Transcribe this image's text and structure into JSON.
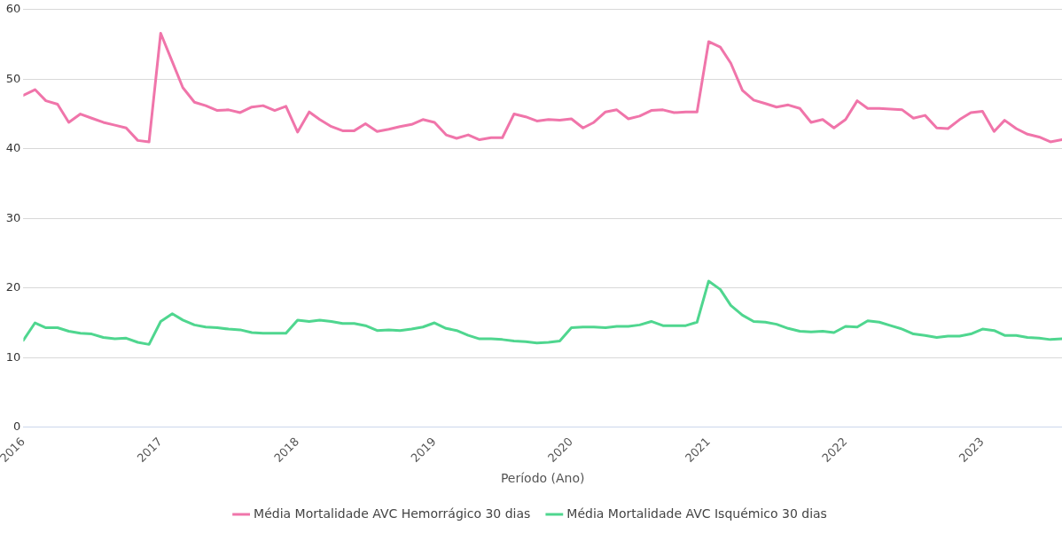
{
  "chart_data": {
    "type": "line",
    "xlabel": "Período (Ano)",
    "x": [
      "2016-01",
      "2016-02",
      "2016-03",
      "2016-04",
      "2016-05",
      "2016-06",
      "2016-07",
      "2016-08",
      "2016-09",
      "2016-10",
      "2016-11",
      "2016-12",
      "2017-01",
      "2017-02",
      "2017-03",
      "2017-04",
      "2017-05",
      "2017-06",
      "2017-07",
      "2017-08",
      "2017-09",
      "2017-10",
      "2017-11",
      "2017-12",
      "2018-01",
      "2018-02",
      "2018-03",
      "2018-04",
      "2018-05",
      "2018-06",
      "2018-07",
      "2018-08",
      "2018-09",
      "2018-10",
      "2018-11",
      "2018-12",
      "2019-01",
      "2019-02",
      "2019-03",
      "2019-04",
      "2019-05",
      "2019-06",
      "2019-07",
      "2019-08",
      "2019-09",
      "2019-10",
      "2019-11",
      "2019-12",
      "2020-01",
      "2020-02",
      "2020-03",
      "2020-04",
      "2020-05",
      "2020-06",
      "2020-07",
      "2020-08",
      "2020-09",
      "2020-10",
      "2020-11",
      "2020-12",
      "2021-01",
      "2021-02",
      "2021-03",
      "2021-04",
      "2021-05",
      "2021-06",
      "2021-07",
      "2021-08",
      "2021-09",
      "2021-10",
      "2021-11",
      "2021-12",
      "2022-01",
      "2022-02",
      "2022-03",
      "2022-04",
      "2022-05",
      "2022-06",
      "2022-07",
      "2022-08",
      "2022-09",
      "2022-10",
      "2022-11",
      "2022-12",
      "2023-01",
      "2023-02",
      "2023-03",
      "2023-04",
      "2023-05",
      "2023-06",
      "2023-07",
      "2023-08"
    ],
    "series": [
      {
        "name": "Média Mortalidade AVC Hemorrágico 30 dias",
        "color": "#f075aa",
        "values": [
          47.7,
          48.5,
          46.9,
          46.4,
          43.8,
          45.0,
          44.4,
          43.8,
          43.4,
          43.0,
          41.2,
          41.0,
          56.6,
          52.5,
          48.8,
          46.7,
          46.2,
          45.5,
          45.6,
          45.2,
          46.0,
          46.2,
          45.5,
          46.1,
          42.4,
          45.3,
          44.2,
          43.2,
          42.6,
          42.6,
          43.6,
          42.5,
          42.8,
          43.2,
          43.5,
          44.2,
          43.8,
          42.0,
          41.5,
          42.0,
          41.3,
          41.6,
          41.6,
          45.0,
          44.6,
          44.0,
          44.2,
          44.1,
          44.3,
          43.0,
          43.8,
          45.3,
          45.6,
          44.3,
          44.7,
          45.5,
          45.6,
          45.2,
          45.3,
          45.3,
          55.4,
          54.6,
          52.3,
          48.4,
          47.0,
          46.5,
          46.0,
          46.3,
          45.8,
          43.8,
          44.2,
          43.0,
          44.2,
          46.9,
          45.8,
          45.8,
          45.7,
          45.6,
          44.4,
          44.8,
          43.0,
          42.9,
          44.2,
          45.2,
          45.4,
          42.5,
          44.1,
          42.9,
          42.1,
          41.7,
          41.0,
          41.3
        ]
      },
      {
        "name": "Média Mortalidade AVC Isquémico 30 dias",
        "color": "#4fd68f",
        "values": [
          12.5,
          15.0,
          14.3,
          14.3,
          13.8,
          13.5,
          13.4,
          12.9,
          12.7,
          12.8,
          12.2,
          11.9,
          15.2,
          16.3,
          15.4,
          14.7,
          14.4,
          14.3,
          14.1,
          14.0,
          13.6,
          13.5,
          13.5,
          13.5,
          15.4,
          15.2,
          15.4,
          15.2,
          14.9,
          14.9,
          14.6,
          13.9,
          14.0,
          13.9,
          14.1,
          14.4,
          15.0,
          14.2,
          13.9,
          13.2,
          12.7,
          12.7,
          12.6,
          12.4,
          12.3,
          12.1,
          12.2,
          12.4,
          14.3,
          14.4,
          14.4,
          14.3,
          14.5,
          14.5,
          14.7,
          15.2,
          14.6,
          14.6,
          14.6,
          15.1,
          21.0,
          19.8,
          17.5,
          16.1,
          15.2,
          15.1,
          14.8,
          14.2,
          13.8,
          13.7,
          13.8,
          13.6,
          14.5,
          14.4,
          15.3,
          15.1,
          14.6,
          14.1,
          13.4,
          13.2,
          12.9,
          13.1,
          13.1,
          13.4,
          14.1,
          13.9,
          13.2,
          13.2,
          12.9,
          12.8,
          12.6,
          12.7
        ]
      }
    ],
    "xlim": [
      "2016-01",
      "2023-08"
    ],
    "xticks": [
      "2016",
      "2017",
      "2018",
      "2019",
      "2020",
      "2021",
      "2022",
      "2023"
    ],
    "ylim": [
      0,
      60
    ],
    "yticks": [
      0,
      10,
      20,
      30,
      40,
      50,
      60
    ],
    "grid": "y",
    "legend": "bottom",
    "marker": "none",
    "line_style": "solid"
  }
}
